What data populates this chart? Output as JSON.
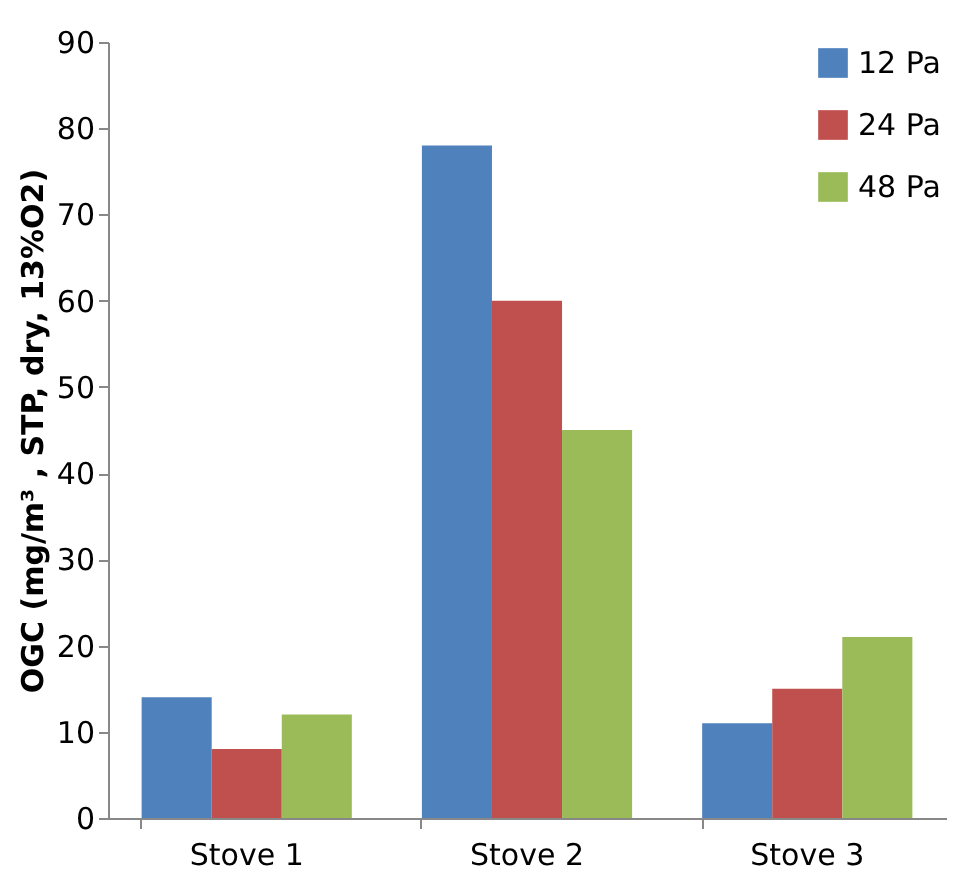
{
  "chart_data": {
    "type": "bar",
    "ylabel": "OGC (mg/m³ , STP, dry, 13%O2)",
    "categories": [
      "Stove 1",
      "Stove 2",
      "Stove 3"
    ],
    "series": [
      {
        "name": "12 Pa",
        "color": "#4f81bd",
        "values": [
          14,
          78,
          11
        ]
      },
      {
        "name": "24 Pa",
        "color": "#c0504d",
        "values": [
          8,
          60,
          15
        ]
      },
      {
        "name": "48 Pa",
        "color": "#9bbb59",
        "values": [
          12,
          45,
          21
        ]
      }
    ],
    "ylim": [
      0,
      90
    ],
    "yticks": [
      0,
      10,
      20,
      30,
      40,
      50,
      60,
      70,
      80,
      90
    ],
    "grid": false,
    "legend": "top right"
  }
}
